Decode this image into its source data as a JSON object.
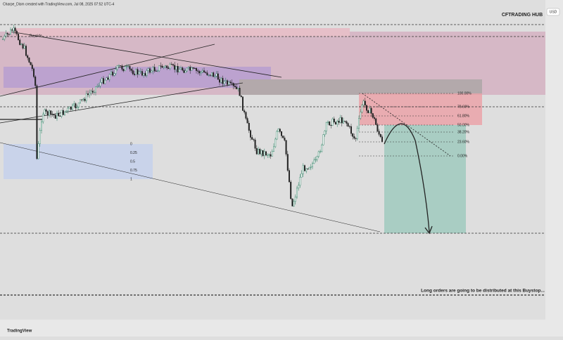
{
  "header": {
    "caption": "Charpe_Dism created with TradingView.com, Jul 08, 2025 07:52 UTC-4",
    "currency": "USD",
    "brand": "CFTRADING HUB"
  },
  "chart": {
    "zone_label": "Buyside",
    "fib_right": [
      "100.00%",
      "78.60%",
      "61.80%",
      "50.00%",
      "38.20%",
      "23.60%",
      "0.00%"
    ],
    "fib_left": [
      "0",
      "0.25",
      "0.5",
      "0.75",
      "1"
    ],
    "note": "Long orders are going to be distributed at this Buystop...",
    "logo": "TradingView"
  }
}
